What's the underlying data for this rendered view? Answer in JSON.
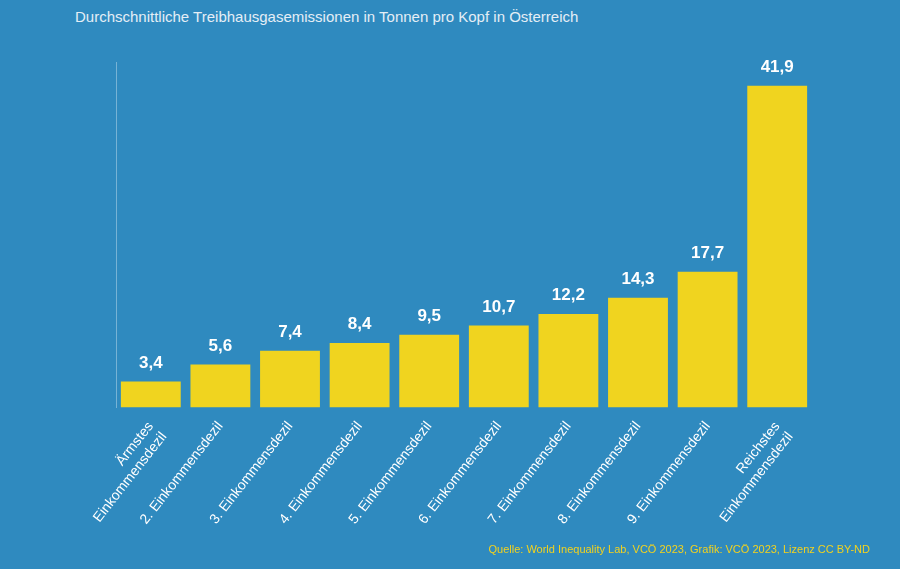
{
  "chart_data": {
    "type": "bar",
    "title": "Durchschnittliche Treibhausgasemissionen in Tonnen pro Kopf in Österreich",
    "source": "Quelle: World Inequality Lab, VCÖ 2023, Grafik: VCÖ 2023, Lizenz CC BY-ND",
    "categories": [
      [
        "Ärmstes",
        "Einkommensdezil"
      ],
      "2. Einkommensdezil",
      "3. Einkommensdezil",
      "4. Einkommensdezil",
      "5. Einkommensdezil",
      "6. Einkommensdezil",
      "7. Einkommensdezil",
      "8. Einkommensdezil",
      "9. Einkommensdezil",
      [
        "Reichstes",
        "Einkommensdezil"
      ]
    ],
    "values": [
      3.4,
      5.6,
      7.4,
      8.4,
      9.5,
      10.7,
      12.2,
      14.3,
      17.7,
      41.9
    ],
    "value_labels": [
      "3,4",
      "5,6",
      "7,4",
      "8,4",
      "9,5",
      "10,7",
      "12,2",
      "14,3",
      "17,7",
      "41,9"
    ],
    "color": "#f0d41f",
    "ylim": [
      0,
      45
    ],
    "grid": false,
    "data_labels": true,
    "tick_labels": "x"
  }
}
